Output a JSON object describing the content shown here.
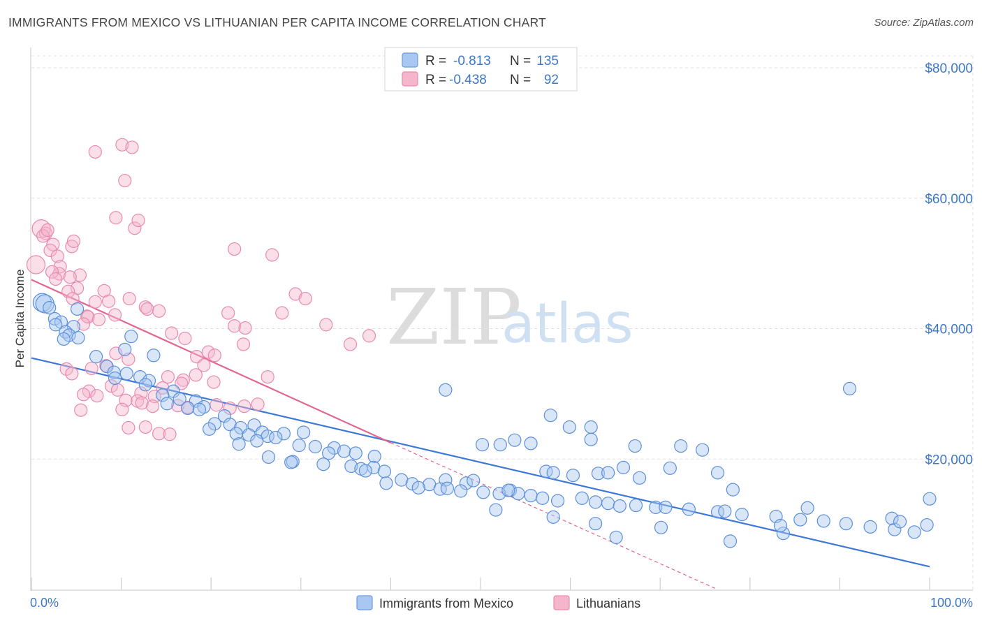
{
  "header": {
    "title": "IMMIGRANTS FROM MEXICO VS LITHUANIAN PER CAPITA INCOME CORRELATION CHART",
    "source": "Source: ZipAtlas.com"
  },
  "watermark": {
    "zip": "ZIP",
    "atlas": "atlas"
  },
  "colors": {
    "blue": "#3d78d8",
    "blue_fill": "#a9c7f0",
    "pink": "#e36591",
    "pink_fill": "#f5b5cb",
    "axis_text": "#3d78c7",
    "grid": "#e2e2e2"
  },
  "stats": [
    {
      "r_label": "R =",
      "r_value": "-0.813",
      "n_label": "N =",
      "n_value": "135"
    },
    {
      "r_label": "R =",
      "r_value": "-0.438",
      "n_label": "N =",
      "n_value": "92"
    }
  ],
  "chart_data": {
    "type": "scatter",
    "title": "IMMIGRANTS FROM MEXICO VS LITHUANIAN PER CAPITA INCOME CORRELATION CHART",
    "xlabel": "",
    "ylabel": "Per Capita Income",
    "xlim": [
      0,
      100
    ],
    "ylim": [
      0,
      84000
    ],
    "y_ticks": [
      20000,
      40000,
      60000,
      80000
    ],
    "y_tick_labels": [
      "$20,000",
      "$40,000",
      "$60,000",
      "$80,000"
    ],
    "x_tick_labels": [
      "0.0%",
      "100.0%"
    ],
    "grid": true,
    "legend_position": "bottom-center",
    "series": [
      {
        "name": "Immigrants from Mexico",
        "color": "#3d78d8",
        "r": -0.813,
        "n": 135,
        "trend": {
          "x": [
            0,
            100
          ],
          "y": [
            35500,
            3500
          ]
        },
        "points": [
          [
            1.2,
            44000
          ],
          [
            1.5,
            43800
          ],
          [
            2,
            43200
          ],
          [
            2.6,
            41500
          ],
          [
            3.3,
            41000
          ],
          [
            2.7,
            40600
          ],
          [
            5.1,
            43000
          ],
          [
            4.7,
            40300
          ],
          [
            3.8,
            39500
          ],
          [
            4.2,
            39000
          ],
          [
            5.2,
            38600
          ],
          [
            3.6,
            38400
          ],
          [
            11.1,
            38800
          ],
          [
            10.4,
            36800
          ],
          [
            7.2,
            35700
          ],
          [
            13.6,
            35900
          ],
          [
            8.4,
            34200
          ],
          [
            9.2,
            33300
          ],
          [
            10.6,
            33100
          ],
          [
            12.1,
            32600
          ],
          [
            9.3,
            32400
          ],
          [
            13.1,
            32000
          ],
          [
            12.7,
            31400
          ],
          [
            15.8,
            30400
          ],
          [
            14.6,
            29800
          ],
          [
            16.5,
            29200
          ],
          [
            15.1,
            28500
          ],
          [
            18.3,
            28900
          ],
          [
            17.4,
            27800
          ],
          [
            19.2,
            28000
          ],
          [
            18.7,
            27600
          ],
          [
            21.5,
            26600
          ],
          [
            20.4,
            25400
          ],
          [
            22.1,
            25300
          ],
          [
            19.8,
            24600
          ],
          [
            23.3,
            24800
          ],
          [
            24.8,
            25200
          ],
          [
            25.7,
            24100
          ],
          [
            22.8,
            23900
          ],
          [
            26.3,
            23500
          ],
          [
            28.1,
            23900
          ],
          [
            30.3,
            24100
          ],
          [
            27.2,
            23300
          ],
          [
            24.2,
            23700
          ],
          [
            25.1,
            22800
          ],
          [
            23.1,
            22300
          ],
          [
            29.8,
            22100
          ],
          [
            31.6,
            21900
          ],
          [
            33.7,
            21700
          ],
          [
            34.8,
            21200
          ],
          [
            33.1,
            20900
          ],
          [
            36.1,
            20900
          ],
          [
            38.2,
            20400
          ],
          [
            26.4,
            20300
          ],
          [
            29.1,
            19600
          ],
          [
            28.9,
            19500
          ],
          [
            32.5,
            19200
          ],
          [
            35.6,
            18900
          ],
          [
            36.7,
            18500
          ],
          [
            38.1,
            18700
          ],
          [
            37.2,
            18200
          ],
          [
            39.3,
            18100
          ],
          [
            41.2,
            16800
          ],
          [
            39.5,
            16300
          ],
          [
            42.4,
            16200
          ],
          [
            44.3,
            16100
          ],
          [
            46.1,
            16800
          ],
          [
            48.4,
            16300
          ],
          [
            49.2,
            16700
          ],
          [
            43.1,
            15600
          ],
          [
            45.5,
            15400
          ],
          [
            46.3,
            15500
          ],
          [
            47.8,
            15100
          ],
          [
            50.3,
            14900
          ],
          [
            52.1,
            14700
          ],
          [
            53.3,
            15200
          ],
          [
            54.2,
            14700
          ],
          [
            55.6,
            14400
          ],
          [
            56.9,
            14000
          ],
          [
            58.6,
            13600
          ],
          [
            62.8,
            13400
          ],
          [
            64.2,
            13200
          ],
          [
            67.3,
            12900
          ],
          [
            69.5,
            12600
          ],
          [
            73.2,
            12300
          ],
          [
            76.4,
            11900
          ],
          [
            79.1,
            11500
          ],
          [
            82.9,
            11200
          ],
          [
            85.6,
            10700
          ],
          [
            88.2,
            10500
          ],
          [
            90.7,
            10100
          ],
          [
            93.4,
            9600
          ],
          [
            96.1,
            9200
          ],
          [
            98.3,
            8800
          ],
          [
            91.1,
            30800
          ],
          [
            46.1,
            30600
          ],
          [
            57.8,
            26700
          ],
          [
            59.9,
            24900
          ],
          [
            62.3,
            24900
          ],
          [
            53.8,
            22900
          ],
          [
            55.6,
            22400
          ],
          [
            50.2,
            22200
          ],
          [
            52.2,
            22200
          ],
          [
            62.3,
            23000
          ],
          [
            67.2,
            22000
          ],
          [
            72.3,
            22000
          ],
          [
            74.7,
            21400
          ],
          [
            65.9,
            18700
          ],
          [
            71.1,
            18600
          ],
          [
            57.3,
            18100
          ],
          [
            60.3,
            17500
          ],
          [
            63.1,
            17800
          ],
          [
            67.7,
            17100
          ],
          [
            76.4,
            17900
          ],
          [
            78.1,
            15300
          ],
          [
            61.3,
            14000
          ],
          [
            70.6,
            12600
          ],
          [
            62.8,
            10100
          ],
          [
            70.1,
            9500
          ],
          [
            65.1,
            8000
          ],
          [
            77.2,
            12000
          ],
          [
            86.4,
            12500
          ],
          [
            77.8,
            7400
          ],
          [
            95.8,
            10900
          ],
          [
            100.0,
            13900
          ],
          [
            83.7,
            8600
          ],
          [
            96.7,
            10400
          ],
          [
            99.7,
            9900
          ],
          [
            64.2,
            17900
          ],
          [
            53.1,
            15200
          ],
          [
            51.7,
            12200
          ],
          [
            58.1,
            11100
          ],
          [
            65.5,
            12800
          ],
          [
            58.1,
            17900
          ],
          [
            83.4,
            9800
          ]
        ]
      },
      {
        "name": "Lithuanians",
        "color": "#e36591",
        "r": -0.438,
        "n": 92,
        "trend": {
          "x": [
            0,
            40
          ],
          "y": [
            47500,
            22500
          ]
        },
        "trend_extension": {
          "x": [
            40,
            76.4
          ],
          "y": [
            22500,
            0
          ]
        },
        "points": [
          [
            0.5,
            49800
          ],
          [
            1.1,
            55300
          ],
          [
            1.6,
            54600
          ],
          [
            1.3,
            54200
          ],
          [
            1.8,
            55100
          ],
          [
            2.4,
            52900
          ],
          [
            2.1,
            52000
          ],
          [
            2.9,
            51100
          ],
          [
            3.2,
            49500
          ],
          [
            3.1,
            48400
          ],
          [
            2.3,
            48700
          ],
          [
            2.7,
            47600
          ],
          [
            4.5,
            52600
          ],
          [
            4.7,
            53400
          ],
          [
            5.4,
            48200
          ],
          [
            4.3,
            47900
          ],
          [
            5.1,
            46200
          ],
          [
            4.1,
            45700
          ],
          [
            8.1,
            45800
          ],
          [
            4.6,
            44600
          ],
          [
            7.1,
            44100
          ],
          [
            8.6,
            44200
          ],
          [
            9.3,
            42100
          ],
          [
            6.2,
            41900
          ],
          [
            6.3,
            41800
          ],
          [
            7.5,
            41400
          ],
          [
            5.8,
            40700
          ],
          [
            10.9,
            44600
          ],
          [
            12.7,
            43300
          ],
          [
            12.9,
            43000
          ],
          [
            14.2,
            42700
          ],
          [
            15.6,
            39300
          ],
          [
            17.1,
            38500
          ],
          [
            18.4,
            35700
          ],
          [
            19.2,
            34400
          ],
          [
            15.2,
            32600
          ],
          [
            16.9,
            32100
          ],
          [
            20.3,
            31800
          ],
          [
            14.6,
            30900
          ],
          [
            12.2,
            30100
          ],
          [
            13.7,
            29600
          ],
          [
            11.8,
            28900
          ],
          [
            10.5,
            29000
          ],
          [
            12.3,
            28600
          ],
          [
            16.3,
            28200
          ],
          [
            17.4,
            27900
          ],
          [
            20.6,
            28300
          ],
          [
            22.1,
            27800
          ],
          [
            23.7,
            28100
          ],
          [
            25.2,
            28400
          ],
          [
            8.9,
            31200
          ],
          [
            9.6,
            30600
          ],
          [
            6.4,
            30400
          ],
          [
            5.8,
            29900
          ],
          [
            7.3,
            29700
          ],
          [
            3.9,
            33800
          ],
          [
            4.5,
            33100
          ],
          [
            9.4,
            36200
          ],
          [
            10.8,
            35300
          ],
          [
            8.3,
            34300
          ],
          [
            6.7,
            33900
          ],
          [
            5.5,
            27500
          ],
          [
            10.1,
            27600
          ],
          [
            10.8,
            24800
          ],
          [
            12.7,
            24900
          ],
          [
            13.5,
            28100
          ],
          [
            14.2,
            23900
          ],
          [
            15.4,
            23800
          ],
          [
            16.7,
            31600
          ],
          [
            18.3,
            32900
          ],
          [
            19.7,
            36400
          ],
          [
            20.4,
            35900
          ],
          [
            23.6,
            37600
          ],
          [
            26.3,
            32600
          ],
          [
            21.9,
            42400
          ],
          [
            22.6,
            40400
          ],
          [
            23.8,
            40100
          ],
          [
            27.9,
            42400
          ],
          [
            29.4,
            45300
          ],
          [
            30.5,
            44600
          ],
          [
            32.8,
            40600
          ],
          [
            35.5,
            37600
          ],
          [
            37.6,
            38900
          ],
          [
            7.1,
            67100
          ],
          [
            10.1,
            68200
          ],
          [
            11.2,
            67800
          ],
          [
            10.4,
            62700
          ],
          [
            9.4,
            57000
          ],
          [
            11.5,
            55400
          ],
          [
            11.9,
            56600
          ],
          [
            22.6,
            52200
          ],
          [
            26.8,
            51300
          ]
        ]
      }
    ]
  },
  "legend": [
    {
      "label": "Immigrants from Mexico"
    },
    {
      "label": "Lithuanians"
    }
  ]
}
